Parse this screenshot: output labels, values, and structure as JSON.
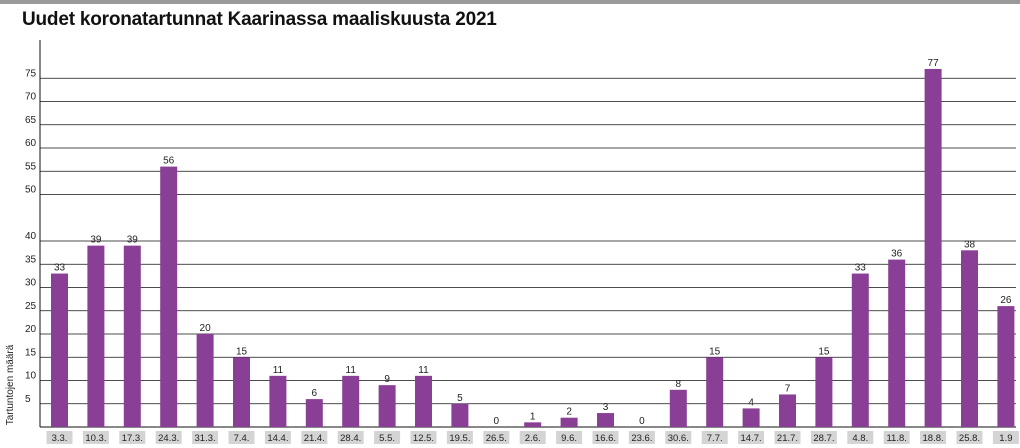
{
  "chart_data": {
    "type": "bar",
    "title": "Uudet koronatartunnat Kaarinassa maaliskuusta 2021",
    "xlabel": "",
    "ylabel": "Tartuntojen määrä",
    "ylim": [
      0,
      80
    ],
    "yticks": [
      5,
      10,
      15,
      20,
      25,
      30,
      35,
      40,
      50,
      55,
      60,
      65,
      70,
      75
    ],
    "grid": true,
    "categories": [
      "3.3.",
      "10.3.",
      "17.3.",
      "24.3.",
      "31.3.",
      "7.4.",
      "14.4.",
      "21.4.",
      "28.4.",
      "5.5.",
      "12.5.",
      "19.5.",
      "26.5.",
      "2.6.",
      "9.6.",
      "16.6.",
      "23.6.",
      "30.6.",
      "7.7.",
      "14.7.",
      "21.7.",
      "28.7.",
      "4.8.",
      "11.8.",
      "18.8.",
      "25.8.",
      "1.9"
    ],
    "values": [
      33,
      39,
      39,
      56,
      20,
      15,
      11,
      6,
      11,
      9,
      11,
      5,
      0,
      1,
      2,
      3,
      0,
      8,
      15,
      4,
      7,
      15,
      33,
      36,
      77,
      38,
      26
    ],
    "colors": {
      "bar": "#8a3f96",
      "grid": "#111111",
      "category_box": "#d4d4d4",
      "top_rule": "#9a9a9a"
    }
  }
}
